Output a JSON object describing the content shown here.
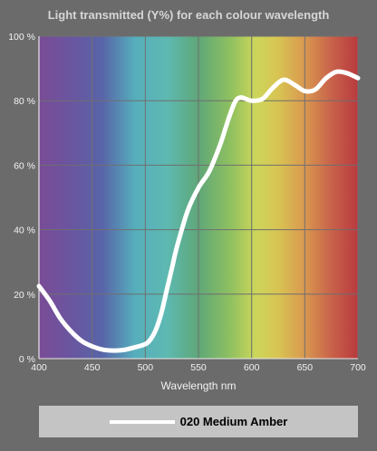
{
  "chart_data": {
    "type": "line",
    "title": "Light transmitted (Y%) for each colour wavelength",
    "xlabel": "Wavelength nm",
    "ylabel": "",
    "xlim": [
      400,
      700
    ],
    "ylim": [
      0,
      100
    ],
    "x_ticks": [
      400,
      450,
      500,
      550,
      600,
      650,
      700
    ],
    "y_ticks": [
      0,
      20,
      40,
      60,
      80,
      100
    ],
    "y_tick_labels": [
      "0 %",
      "20 %",
      "40 %",
      "60 %",
      "80 %",
      "100 %"
    ],
    "grid": true,
    "background": "visible-spectrum gradient",
    "legend_position": "bottom",
    "series": [
      {
        "name": "020 Medium Amber",
        "color": "#ffffff",
        "x": [
          400,
          410,
          420,
          430,
          440,
          450,
          460,
          470,
          480,
          490,
          500,
          505,
          510,
          515,
          520,
          525,
          530,
          540,
          550,
          560,
          570,
          575,
          580,
          585,
          590,
          595,
          600,
          610,
          620,
          630,
          640,
          650,
          660,
          670,
          680,
          690,
          700
        ],
        "y": [
          22.5,
          18,
          12.5,
          8.5,
          5.5,
          3.8,
          2.8,
          2.5,
          2.7,
          3.5,
          4.5,
          6,
          9,
          14,
          21,
          28,
          35,
          46,
          53,
          58,
          66,
          71,
          76,
          80,
          81,
          80.5,
          80,
          80.5,
          84,
          86.5,
          85,
          83,
          83.5,
          87,
          89,
          88.5,
          87
        ]
      }
    ]
  },
  "legend": {
    "label": "020 Medium Amber"
  }
}
